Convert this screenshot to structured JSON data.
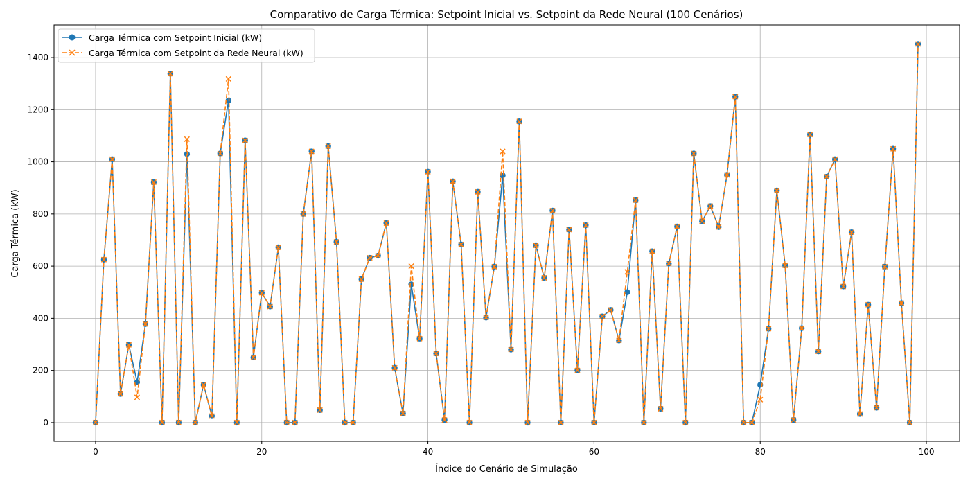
{
  "chart_data": {
    "type": "line",
    "title": "Comparativo de Carga Térmica: Setpoint Inicial vs. Setpoint da Rede Neural (100 Cenários)",
    "xlabel": "Índice do Cenário de Simulação",
    "ylabel": "Carga Térmica (kW)",
    "xlim": [
      -5,
      104
    ],
    "ylim": [
      -72,
      1525
    ],
    "xticks": [
      0,
      20,
      40,
      60,
      80,
      100
    ],
    "yticks": [
      0,
      200,
      400,
      600,
      800,
      1000,
      1200,
      1400
    ],
    "grid": true,
    "legend_position": "top-left",
    "x": [
      0,
      1,
      2,
      3,
      4,
      5,
      6,
      7,
      8,
      9,
      10,
      11,
      12,
      13,
      14,
      15,
      16,
      17,
      18,
      19,
      20,
      21,
      22,
      23,
      24,
      25,
      26,
      27,
      28,
      29,
      30,
      31,
      32,
      33,
      34,
      35,
      36,
      37,
      38,
      39,
      40,
      41,
      42,
      43,
      44,
      45,
      46,
      47,
      48,
      49,
      50,
      51,
      52,
      53,
      54,
      55,
      56,
      57,
      58,
      59,
      60,
      61,
      62,
      63,
      64,
      65,
      66,
      67,
      68,
      69,
      70,
      71,
      72,
      73,
      74,
      75,
      76,
      77,
      78,
      79,
      80,
      81,
      82,
      83,
      84,
      85,
      86,
      87,
      88,
      89,
      90,
      91,
      92,
      93,
      94,
      95,
      96,
      97,
      98,
      99
    ],
    "series": [
      {
        "name": "Carga Térmica com Setpoint Inicial (kW)",
        "color": "#1f77b4",
        "marker": "circle",
        "linestyle": "solid",
        "values": [
          0,
          625,
          1010,
          110,
          298,
          155,
          378,
          922,
          0,
          1338,
          0,
          1030,
          0,
          145,
          25,
          1032,
          1235,
          0,
          1082,
          250,
          498,
          445,
          672,
          0,
          0,
          800,
          1040,
          48,
          1060,
          693,
          0,
          0,
          550,
          632,
          640,
          765,
          210,
          35,
          530,
          322,
          962,
          265,
          10,
          925,
          683,
          0,
          885,
          403,
          598,
          948,
          280,
          1155,
          0,
          680,
          555,
          813,
          0,
          740,
          200,
          757,
          0,
          407,
          432,
          315,
          500,
          853,
          0,
          657,
          53,
          610,
          752,
          0,
          1032,
          772,
          830,
          750,
          950,
          1250,
          0,
          0,
          145,
          360,
          890,
          603,
          10,
          362,
          1105,
          273,
          943,
          1010,
          522,
          730,
          33,
          452,
          57,
          598,
          1050,
          458,
          0,
          1452
        ]
      },
      {
        "name": "Carga Térmica com Setpoint da Rede Neural (kW)",
        "color": "#ff7f0e",
        "marker": "x",
        "linestyle": "dashed",
        "values": [
          0,
          625,
          1010,
          110,
          298,
          97,
          378,
          922,
          0,
          1338,
          0,
          1087,
          0,
          145,
          25,
          1032,
          1318,
          0,
          1082,
          250,
          498,
          445,
          672,
          0,
          0,
          800,
          1040,
          48,
          1060,
          693,
          0,
          0,
          550,
          632,
          640,
          765,
          210,
          35,
          600,
          322,
          962,
          265,
          10,
          925,
          683,
          0,
          885,
          403,
          598,
          1040,
          280,
          1155,
          0,
          680,
          555,
          813,
          0,
          740,
          200,
          757,
          0,
          407,
          432,
          315,
          578,
          853,
          0,
          657,
          53,
          610,
          752,
          0,
          1032,
          772,
          830,
          750,
          950,
          1250,
          0,
          0,
          88,
          360,
          890,
          603,
          10,
          362,
          1105,
          273,
          943,
          1010,
          522,
          730,
          33,
          452,
          57,
          598,
          1050,
          458,
          0,
          1452
        ]
      }
    ]
  }
}
